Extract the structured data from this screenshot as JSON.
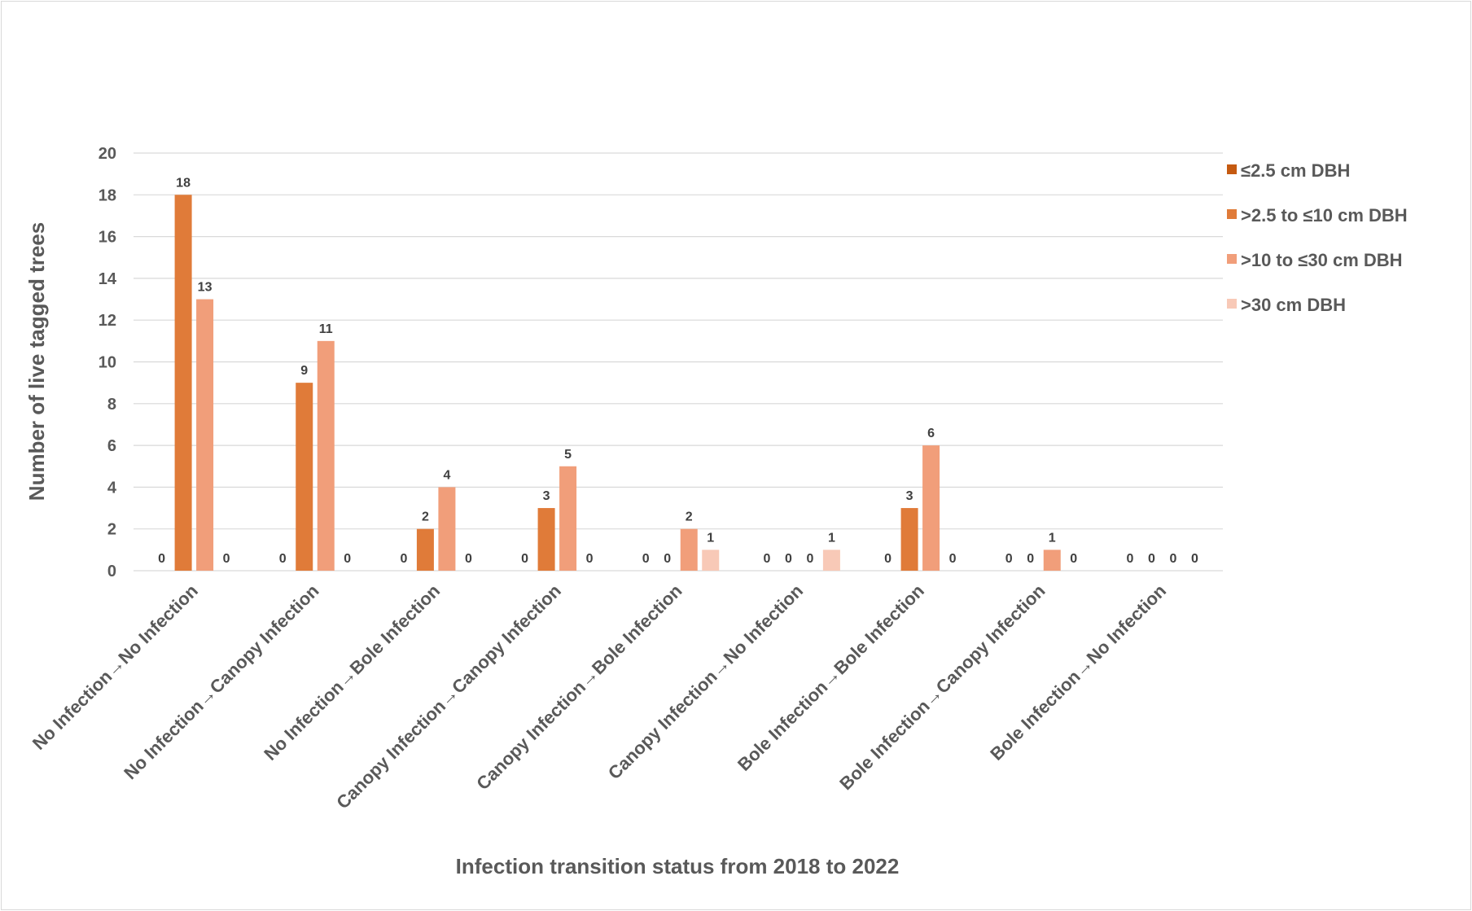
{
  "chart_data": {
    "type": "bar",
    "title": "",
    "xlabel": "Infection transition status from 2018 to 2022",
    "ylabel": "Number of live tagged trees",
    "ylim": [
      0,
      20
    ],
    "yticks": [
      0,
      2,
      4,
      6,
      8,
      10,
      12,
      14,
      16,
      18,
      20
    ],
    "grid": true,
    "legend_position": "right",
    "categories": [
      "No Infection→No Infection",
      "No Infection→Canopy Infection",
      "No Infection→Bole Infection",
      "Canopy Infection→Canopy Infection",
      "Canopy Infection→Bole Infection",
      "Canopy Infection→No Infection",
      "Bole Infection→Bole Infection",
      "Bole Infection→Canopy Infection",
      "Bole Infection→No Infection"
    ],
    "series": [
      {
        "name": "≤2.5 cm DBH",
        "color": "#c55a11",
        "values": [
          0,
          0,
          0,
          0,
          0,
          0,
          0,
          0,
          0
        ]
      },
      {
        "name": ">2.5 to ≤10 cm DBH",
        "color": "#e07b39",
        "values": [
          18,
          9,
          2,
          3,
          0,
          0,
          3,
          0,
          0
        ]
      },
      {
        "name": ">10 to ≤30 cm DBH",
        "color": "#f19e7a",
        "values": [
          13,
          11,
          4,
          5,
          2,
          0,
          6,
          1,
          0
        ]
      },
      {
        "name": ">30 cm DBH",
        "color": "#f8c9b7",
        "values": [
          0,
          0,
          0,
          0,
          1,
          1,
          0,
          0,
          0
        ]
      }
    ]
  },
  "colors": {
    "axis_text": "#595959",
    "label_text": "#404040",
    "gridline": "#d9d9d9"
  }
}
